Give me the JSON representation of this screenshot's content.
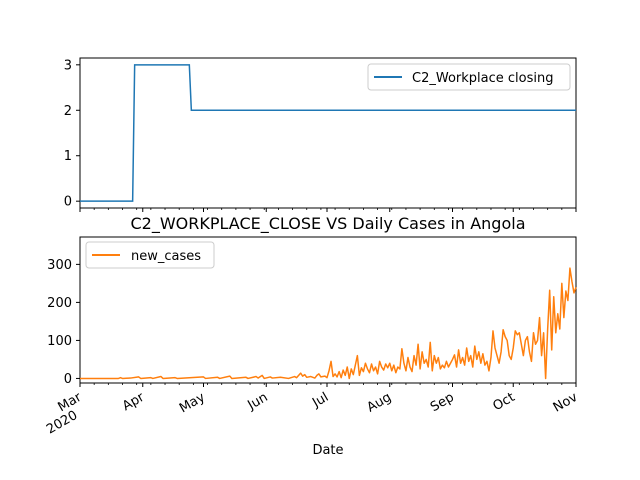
{
  "chart_data": [
    {
      "type": "line",
      "title": "",
      "xlabel": "",
      "ylabel": "",
      "ylim": [
        -0.15,
        3.15
      ],
      "yticks": [
        0,
        1,
        2,
        3
      ],
      "x_range": [
        "2020-03-01",
        "2020-11-01"
      ],
      "legend": {
        "position": "top-right",
        "entries": [
          "C2_Workplace closing"
        ]
      },
      "series": [
        {
          "name": "C2_Workplace closing",
          "color": "#1f77b4",
          "points": [
            [
              "2020-03-01",
              0
            ],
            [
              "2020-03-27",
              0
            ],
            [
              "2020-03-28",
              3
            ],
            [
              "2020-04-24",
              3
            ],
            [
              "2020-04-25",
              2
            ],
            [
              "2020-11-01",
              2
            ]
          ]
        }
      ]
    },
    {
      "type": "line",
      "title": "C2_WORKPLACE_CLOSE VS Daily Cases in Angola",
      "xlabel": "Date",
      "ylabel": "",
      "ylim": [
        -12,
        372
      ],
      "yticks": [
        0,
        100,
        200,
        300
      ],
      "x_range": [
        "2020-03-01",
        "2020-11-01"
      ],
      "x_tick_labels": [
        {
          "date": "2020-03-01",
          "label": "Mar",
          "sublabel": "2020"
        },
        {
          "date": "2020-04-01",
          "label": "Apr"
        },
        {
          "date": "2020-05-01",
          "label": "May"
        },
        {
          "date": "2020-06-01",
          "label": "Jun"
        },
        {
          "date": "2020-07-01",
          "label": "Jul"
        },
        {
          "date": "2020-08-01",
          "label": "Aug"
        },
        {
          "date": "2020-09-01",
          "label": "Sep"
        },
        {
          "date": "2020-10-01",
          "label": "Oct"
        },
        {
          "date": "2020-11-01",
          "label": "Nov"
        }
      ],
      "legend": {
        "position": "top-left",
        "entries": [
          "new_cases"
        ]
      },
      "series": [
        {
          "name": "new_cases",
          "color": "#ff7f0e",
          "points": [
            [
              "2020-03-01",
              0
            ],
            [
              "2020-03-20",
              0
            ],
            [
              "2020-03-21",
              2
            ],
            [
              "2020-03-22",
              0
            ],
            [
              "2020-03-26",
              1
            ],
            [
              "2020-03-30",
              4
            ],
            [
              "2020-03-31",
              0
            ],
            [
              "2020-04-05",
              2
            ],
            [
              "2020-04-06",
              0
            ],
            [
              "2020-04-10",
              5
            ],
            [
              "2020-04-11",
              0
            ],
            [
              "2020-04-17",
              2
            ],
            [
              "2020-04-18",
              0
            ],
            [
              "2020-05-01",
              4
            ],
            [
              "2020-05-02",
              0
            ],
            [
              "2020-05-08",
              3
            ],
            [
              "2020-05-09",
              0
            ],
            [
              "2020-05-14",
              6
            ],
            [
              "2020-05-15",
              0
            ],
            [
              "2020-05-22",
              3
            ],
            [
              "2020-05-23",
              0
            ],
            [
              "2020-05-27",
              5
            ],
            [
              "2020-05-28",
              1
            ],
            [
              "2020-05-30",
              8
            ],
            [
              "2020-05-31",
              0
            ],
            [
              "2020-06-03",
              4
            ],
            [
              "2020-06-04",
              1
            ],
            [
              "2020-06-08",
              3
            ],
            [
              "2020-06-12",
              0
            ],
            [
              "2020-06-15",
              5
            ],
            [
              "2020-06-16",
              2
            ],
            [
              "2020-06-18",
              14
            ],
            [
              "2020-06-19",
              6
            ],
            [
              "2020-06-20",
              10
            ],
            [
              "2020-06-21",
              3
            ],
            [
              "2020-06-23",
              5
            ],
            [
              "2020-06-25",
              1
            ],
            [
              "2020-06-26",
              8
            ],
            [
              "2020-06-27",
              12
            ],
            [
              "2020-06-28",
              4
            ],
            [
              "2020-06-30",
              6
            ],
            [
              "2020-07-01",
              2
            ],
            [
              "2020-07-02",
              20
            ],
            [
              "2020-07-03",
              45
            ],
            [
              "2020-07-04",
              5
            ],
            [
              "2020-07-05",
              12
            ],
            [
              "2020-07-06",
              4
            ],
            [
              "2020-07-07",
              18
            ],
            [
              "2020-07-08",
              2
            ],
            [
              "2020-07-09",
              22
            ],
            [
              "2020-07-10",
              8
            ],
            [
              "2020-07-11",
              30
            ],
            [
              "2020-07-12",
              0
            ],
            [
              "2020-07-13",
              25
            ],
            [
              "2020-07-14",
              10
            ],
            [
              "2020-07-15",
              35
            ],
            [
              "2020-07-16",
              60
            ],
            [
              "2020-07-17",
              8
            ],
            [
              "2020-07-18",
              28
            ],
            [
              "2020-07-19",
              18
            ],
            [
              "2020-07-20",
              40
            ],
            [
              "2020-07-21",
              25
            ],
            [
              "2020-07-22",
              15
            ],
            [
              "2020-07-23",
              38
            ],
            [
              "2020-07-24",
              20
            ],
            [
              "2020-07-25",
              30
            ],
            [
              "2020-07-26",
              12
            ],
            [
              "2020-07-27",
              45
            ],
            [
              "2020-07-28",
              30
            ],
            [
              "2020-07-29",
              22
            ],
            [
              "2020-07-30",
              38
            ],
            [
              "2020-07-31",
              28
            ],
            [
              "2020-08-01",
              40
            ],
            [
              "2020-08-02",
              20
            ],
            [
              "2020-08-03",
              35
            ],
            [
              "2020-08-04",
              15
            ],
            [
              "2020-08-05",
              30
            ],
            [
              "2020-08-06",
              25
            ],
            [
              "2020-08-07",
              78
            ],
            [
              "2020-08-08",
              40
            ],
            [
              "2020-08-09",
              20
            ],
            [
              "2020-08-10",
              55
            ],
            [
              "2020-08-11",
              30
            ],
            [
              "2020-08-12",
              18
            ],
            [
              "2020-08-13",
              60
            ],
            [
              "2020-08-14",
              35
            ],
            [
              "2020-08-15",
              90
            ],
            [
              "2020-08-16",
              25
            ],
            [
              "2020-08-17",
              70
            ],
            [
              "2020-08-18",
              40
            ],
            [
              "2020-08-19",
              50
            ],
            [
              "2020-08-20",
              30
            ],
            [
              "2020-08-21",
              95
            ],
            [
              "2020-08-22",
              20
            ],
            [
              "2020-08-23",
              60
            ],
            [
              "2020-08-24",
              40
            ],
            [
              "2020-08-25",
              55
            ],
            [
              "2020-08-26",
              25
            ],
            [
              "2020-08-27",
              35
            ],
            [
              "2020-08-28",
              28
            ],
            [
              "2020-08-29",
              45
            ],
            [
              "2020-08-30",
              30
            ],
            [
              "2020-08-31",
              40
            ],
            [
              "2020-09-01",
              50
            ],
            [
              "2020-09-02",
              62
            ],
            [
              "2020-09-03",
              30
            ],
            [
              "2020-09-04",
              75
            ],
            [
              "2020-09-05",
              40
            ],
            [
              "2020-09-06",
              55
            ],
            [
              "2020-09-07",
              35
            ],
            [
              "2020-09-08",
              80
            ],
            [
              "2020-09-09",
              45
            ],
            [
              "2020-09-10",
              60
            ],
            [
              "2020-09-11",
              30
            ],
            [
              "2020-09-12",
              85
            ],
            [
              "2020-09-13",
              50
            ],
            [
              "2020-09-14",
              70
            ],
            [
              "2020-09-15",
              40
            ],
            [
              "2020-09-16",
              65
            ],
            [
              "2020-09-17",
              35
            ],
            [
              "2020-09-18",
              45
            ],
            [
              "2020-09-19",
              20
            ],
            [
              "2020-09-20",
              55
            ],
            [
              "2020-09-21",
              125
            ],
            [
              "2020-09-22",
              80
            ],
            [
              "2020-09-23",
              60
            ],
            [
              "2020-09-24",
              40
            ],
            [
              "2020-09-25",
              70
            ],
            [
              "2020-09-26",
              128
            ],
            [
              "2020-09-27",
              110
            ],
            [
              "2020-09-28",
              100
            ],
            [
              "2020-09-29",
              60
            ],
            [
              "2020-09-30",
              50
            ],
            [
              "2020-10-01",
              80
            ],
            [
              "2020-10-02",
              125
            ],
            [
              "2020-10-03",
              115
            ],
            [
              "2020-10-04",
              120
            ],
            [
              "2020-10-05",
              90
            ],
            [
              "2020-10-06",
              60
            ],
            [
              "2020-10-07",
              100
            ],
            [
              "2020-10-08",
              110
            ],
            [
              "2020-10-09",
              70
            ],
            [
              "2020-10-10",
              45
            ],
            [
              "2020-10-11",
              120
            ],
            [
              "2020-10-12",
              90
            ],
            [
              "2020-10-13",
              100
            ],
            [
              "2020-10-14",
              160
            ],
            [
              "2020-10-15",
              60
            ],
            [
              "2020-10-16",
              120
            ],
            [
              "2020-10-17",
              0
            ],
            [
              "2020-10-18",
              130
            ],
            [
              "2020-10-19",
              232
            ],
            [
              "2020-10-20",
              75
            ],
            [
              "2020-10-21",
              215
            ],
            [
              "2020-10-22",
              120
            ],
            [
              "2020-10-23",
              170
            ],
            [
              "2020-10-24",
              130
            ],
            [
              "2020-10-25",
              250
            ],
            [
              "2020-10-26",
              160
            ],
            [
              "2020-10-27",
              230
            ],
            [
              "2020-10-28",
              205
            ],
            [
              "2020-10-29",
              290
            ],
            [
              "2020-10-30",
              255
            ],
            [
              "2020-10-31",
              225
            ],
            [
              "2020-11-01",
              240
            ]
          ]
        }
      ]
    }
  ]
}
